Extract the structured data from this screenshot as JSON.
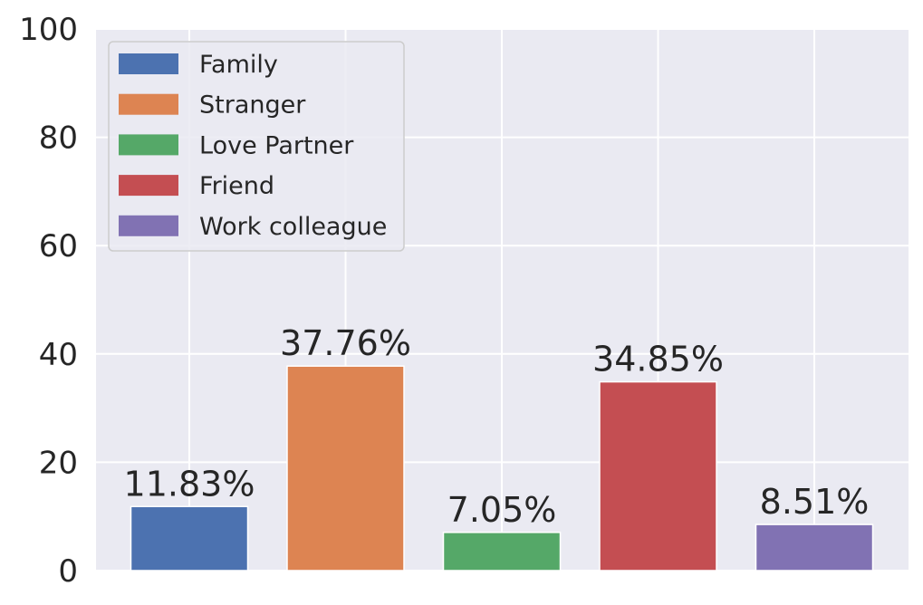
{
  "chart_data": {
    "type": "bar",
    "categories": [
      "Family",
      "Stranger",
      "Love Partner",
      "Friend",
      "Work colleague"
    ],
    "values": [
      11.83,
      37.76,
      7.05,
      34.85,
      8.51
    ],
    "value_labels": [
      "11.83%",
      "37.76%",
      "7.05%",
      "34.85%",
      "8.51%"
    ],
    "colors": [
      "#4c72b0",
      "#dd8452",
      "#55a868",
      "#c44e52",
      "#8172b3"
    ],
    "ylim": [
      0,
      100
    ],
    "y_ticks": [
      0,
      20,
      40,
      60,
      80,
      100
    ],
    "y_tick_labels": [
      "0",
      "20",
      "40",
      "60",
      "80",
      "100"
    ],
    "grid": true,
    "legend": {
      "placement": "top-left",
      "entries": [
        "Family",
        "Stranger",
        "Love Partner",
        "Friend",
        "Work colleague"
      ]
    },
    "background": "#eaeaf2",
    "grid_color": "#ffffff"
  }
}
